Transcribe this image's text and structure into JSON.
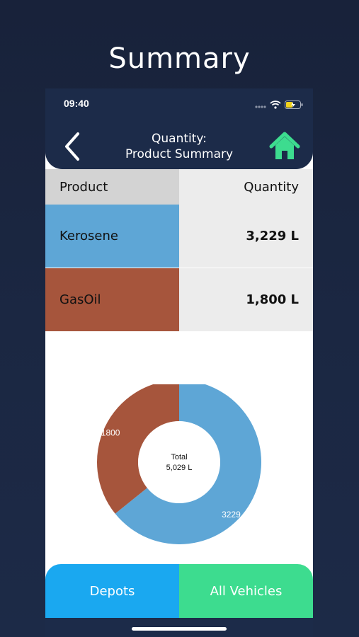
{
  "promo_title": "Summary",
  "status_bar": {
    "time": "09:40"
  },
  "header": {
    "title_line1": "Quantity:",
    "title_line2": "Product Summary"
  },
  "table": {
    "headers": {
      "product": "Product",
      "quantity": "Quantity"
    },
    "rows": [
      {
        "product": "Kerosene",
        "quantity": "3,229 L",
        "color": "#5ea6d6"
      },
      {
        "product": "GasOil",
        "quantity": "1,800 L",
        "color": "#a6553c"
      }
    ]
  },
  "chart_data": {
    "type": "pie",
    "style": "donut",
    "slices": [
      {
        "label": "Kerosene",
        "value": 3229,
        "display": "3229",
        "color": "#5ea6d6"
      },
      {
        "label": "GasOil",
        "value": 1800,
        "display": "1800",
        "color": "#a6553c"
      }
    ],
    "center_label": "Total",
    "center_value": "5,029 L"
  },
  "tabs": {
    "depots": "Depots",
    "vehicles": "All Vehicles"
  },
  "icons": {
    "back": "chevron-left-icon",
    "home": "home-icon"
  },
  "colors": {
    "header_bg": "#1c2b49",
    "home_icon": "#3ddc8f",
    "depots_tab": "#1aa8f0",
    "vehicles_tab": "#3ddc8f"
  }
}
